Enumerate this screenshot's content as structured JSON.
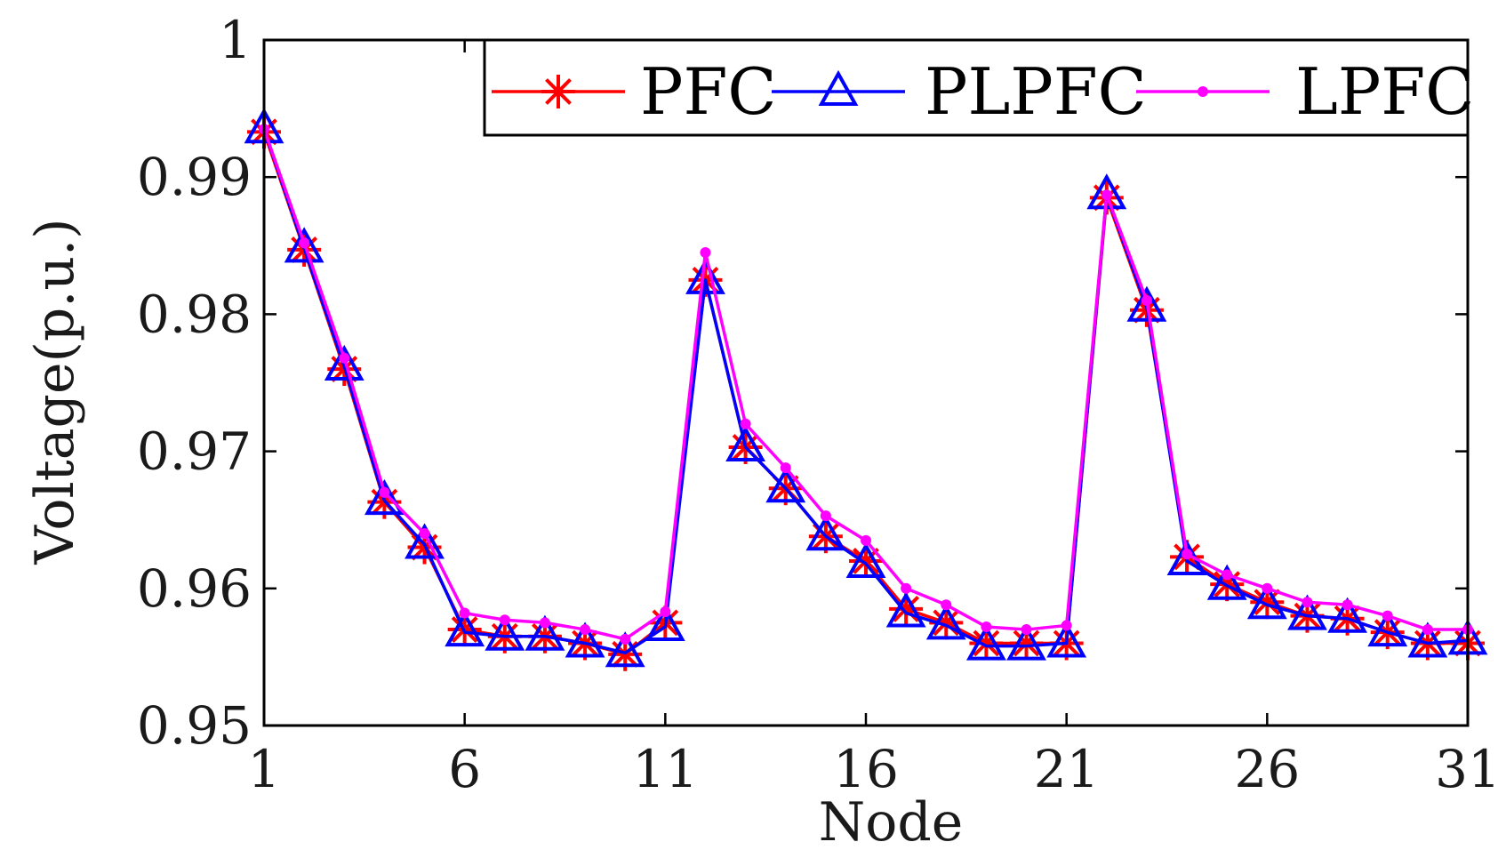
{
  "chart_data": {
    "type": "line",
    "title": "",
    "xlabel": "Node",
    "ylabel": "Voltage(p.u.)",
    "xlim": [
      1,
      31
    ],
    "ylim": [
      0.95,
      1
    ],
    "xticks": [
      1,
      6,
      11,
      16,
      21,
      26,
      31
    ],
    "xtick_labels": [
      "1",
      "6",
      "11",
      "16",
      "21",
      "26",
      "31"
    ],
    "yticks": [
      0.95,
      0.96,
      0.97,
      0.98,
      0.99,
      1
    ],
    "ytick_labels": [
      "0.95",
      "0.96",
      "0.97",
      "0.98",
      "0.99",
      "1"
    ],
    "legend_position": "top-right",
    "x": [
      1,
      2,
      3,
      4,
      5,
      6,
      7,
      8,
      9,
      10,
      11,
      12,
      13,
      14,
      15,
      16,
      17,
      18,
      19,
      20,
      21,
      22,
      23,
      24,
      25,
      26,
      27,
      28,
      29,
      30,
      31
    ],
    "series": [
      {
        "name": "PFC",
        "color": "#ff0000",
        "marker": "asterisk",
        "values": [
          0.9933,
          0.9847,
          0.976,
          0.9663,
          0.963,
          0.957,
          0.9565,
          0.9565,
          0.956,
          0.9552,
          0.9575,
          0.9825,
          0.9703,
          0.9673,
          0.9638,
          0.962,
          0.9585,
          0.9575,
          0.956,
          0.956,
          0.956,
          0.9885,
          0.9803,
          0.9623,
          0.9603,
          0.959,
          0.958,
          0.9578,
          0.9568,
          0.956,
          0.956
        ]
      },
      {
        "name": "PLPFC",
        "color": "#0000ff",
        "marker": "triangle",
        "values": [
          0.9935,
          0.9848,
          0.9762,
          0.9664,
          0.9632,
          0.9568,
          0.9565,
          0.9565,
          0.956,
          0.9553,
          0.9572,
          0.9825,
          0.9703,
          0.9673,
          0.9638,
          0.9618,
          0.9582,
          0.9573,
          0.9558,
          0.9558,
          0.956,
          0.9887,
          0.9805,
          0.962,
          0.9602,
          0.9588,
          0.958,
          0.9578,
          0.9568,
          0.956,
          0.9562
        ]
      },
      {
        "name": "LPFC",
        "color": "#ff00ff",
        "marker": "dot",
        "values": [
          0.9935,
          0.9852,
          0.9768,
          0.967,
          0.964,
          0.9582,
          0.9577,
          0.9575,
          0.957,
          0.9563,
          0.9583,
          0.9845,
          0.972,
          0.9688,
          0.9653,
          0.9635,
          0.96,
          0.9588,
          0.9572,
          0.957,
          0.9573,
          0.9887,
          0.981,
          0.9625,
          0.961,
          0.96,
          0.959,
          0.9588,
          0.958,
          0.957,
          0.957
        ]
      }
    ]
  }
}
